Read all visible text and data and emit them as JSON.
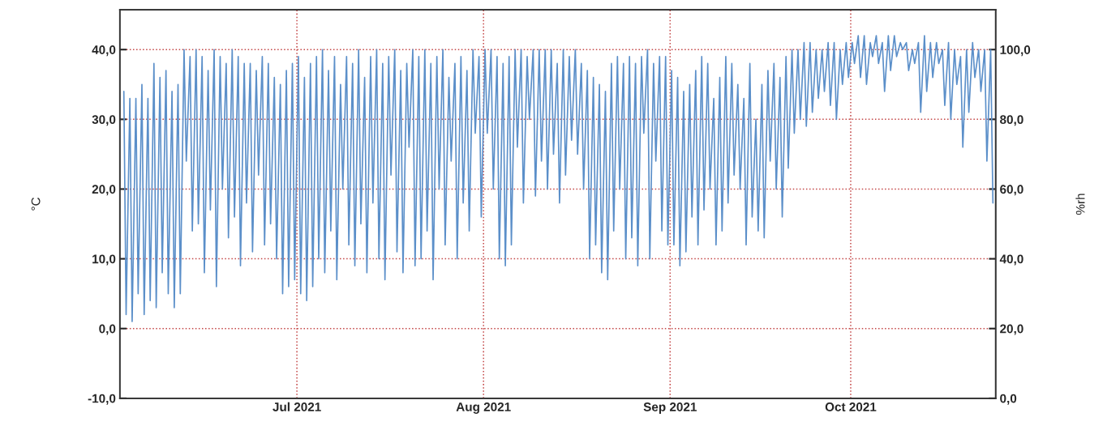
{
  "chart_data": {
    "type": "line",
    "ylabel": "°C",
    "y2label": "%rh",
    "xlim": [
      "2021-06-01T14:00",
      "2021-10-25T02:00"
    ],
    "xticks": [
      {
        "value": "2021-07-01",
        "label": "Jul 2021"
      },
      {
        "value": "2021-08-01",
        "label": "Aug 2021"
      },
      {
        "value": "2021-09-01",
        "label": "Sep 2021"
      },
      {
        "value": "2021-10-01",
        "label": "Oct 2021"
      }
    ],
    "ylim": [
      -10,
      45.7
    ],
    "yticks": [
      {
        "value": -10,
        "label": "-10,0"
      },
      {
        "value": 0,
        "label": "0,0"
      },
      {
        "value": 10,
        "label": "10,0"
      },
      {
        "value": 20,
        "label": "20,0"
      },
      {
        "value": 30,
        "label": "30,0"
      },
      {
        "value": 40,
        "label": "40,0"
      }
    ],
    "y2lim": [
      0,
      111.4
    ],
    "y2ticks": [
      {
        "value": 0,
        "label": "0,0"
      },
      {
        "value": 20,
        "label": "20,0"
      },
      {
        "value": 40,
        "label": "40,0"
      },
      {
        "value": 60,
        "label": "60,0"
      },
      {
        "value": 80,
        "label": "80,0"
      },
      {
        "value": 100,
        "label": "100,0"
      }
    ],
    "grid": true,
    "legend": false,
    "line_style": "solid",
    "marker": "none",
    "series": [
      {
        "axis": "y2",
        "color": "#5b8fc9",
        "x": [
          "2021-06-02T06:00",
          "2021-06-02T15:00",
          "2021-06-03T06:00",
          "2021-06-03T15:00",
          "2021-06-04T06:00",
          "2021-06-04T15:00",
          "2021-06-05T06:00",
          "2021-06-05T15:00",
          "2021-06-06T06:00",
          "2021-06-06T15:00",
          "2021-06-07T06:00",
          "2021-06-07T15:00",
          "2021-06-08T06:00",
          "2021-06-08T15:00",
          "2021-06-09T06:00",
          "2021-06-09T15:00",
          "2021-06-10T06:00",
          "2021-06-10T15:00",
          "2021-06-11T06:00",
          "2021-06-11T15:00",
          "2021-06-12T06:00",
          "2021-06-12T15:00",
          "2021-06-13T06:00",
          "2021-06-13T15:00",
          "2021-06-14T06:00",
          "2021-06-14T15:00",
          "2021-06-15T06:00",
          "2021-06-15T15:00",
          "2021-06-16T06:00",
          "2021-06-16T15:00",
          "2021-06-17T06:00",
          "2021-06-17T15:00",
          "2021-06-18T06:00",
          "2021-06-18T15:00",
          "2021-06-19T06:00",
          "2021-06-19T15:00",
          "2021-06-20T06:00",
          "2021-06-20T15:00",
          "2021-06-21T06:00",
          "2021-06-21T15:00",
          "2021-06-22T06:00",
          "2021-06-22T15:00",
          "2021-06-23T06:00",
          "2021-06-23T15:00",
          "2021-06-24T06:00",
          "2021-06-24T15:00",
          "2021-06-25T06:00",
          "2021-06-25T15:00",
          "2021-06-26T06:00",
          "2021-06-26T15:00",
          "2021-06-27T06:00",
          "2021-06-27T15:00",
          "2021-06-28T06:00",
          "2021-06-28T15:00",
          "2021-06-29T06:00",
          "2021-06-29T15:00",
          "2021-06-30T06:00",
          "2021-06-30T15:00",
          "2021-07-01T06:00",
          "2021-07-01T15:00",
          "2021-07-02T06:00",
          "2021-07-02T15:00",
          "2021-07-03T06:00",
          "2021-07-03T15:00",
          "2021-07-04T06:00",
          "2021-07-04T15:00",
          "2021-07-05T06:00",
          "2021-07-05T15:00",
          "2021-07-06T06:00",
          "2021-07-06T15:00",
          "2021-07-07T06:00",
          "2021-07-07T15:00",
          "2021-07-08T06:00",
          "2021-07-08T15:00",
          "2021-07-09T06:00",
          "2021-07-09T15:00",
          "2021-07-10T06:00",
          "2021-07-10T15:00",
          "2021-07-11T06:00",
          "2021-07-11T15:00",
          "2021-07-12T06:00",
          "2021-07-12T15:00",
          "2021-07-13T06:00",
          "2021-07-13T15:00",
          "2021-07-14T06:00",
          "2021-07-14T15:00",
          "2021-07-15T06:00",
          "2021-07-15T15:00",
          "2021-07-16T06:00",
          "2021-07-16T15:00",
          "2021-07-17T06:00",
          "2021-07-17T15:00",
          "2021-07-18T06:00",
          "2021-07-18T15:00",
          "2021-07-19T06:00",
          "2021-07-19T15:00",
          "2021-07-20T06:00",
          "2021-07-20T15:00",
          "2021-07-21T06:00",
          "2021-07-21T15:00",
          "2021-07-22T06:00",
          "2021-07-22T15:00",
          "2021-07-23T06:00",
          "2021-07-23T15:00",
          "2021-07-24T06:00",
          "2021-07-24T15:00",
          "2021-07-25T06:00",
          "2021-07-25T15:00",
          "2021-07-26T06:00",
          "2021-07-26T15:00",
          "2021-07-27T06:00",
          "2021-07-27T15:00",
          "2021-07-28T06:00",
          "2021-07-28T15:00",
          "2021-07-29T06:00",
          "2021-07-29T15:00",
          "2021-07-30T06:00",
          "2021-07-30T15:00",
          "2021-07-31T06:00",
          "2021-07-31T15:00",
          "2021-08-01T06:00",
          "2021-08-01T15:00",
          "2021-08-02T06:00",
          "2021-08-02T15:00",
          "2021-08-03T06:00",
          "2021-08-03T15:00",
          "2021-08-04T06:00",
          "2021-08-04T15:00",
          "2021-08-05T06:00",
          "2021-08-05T15:00",
          "2021-08-06T06:00",
          "2021-08-06T15:00",
          "2021-08-07T06:00",
          "2021-08-07T15:00",
          "2021-08-08T06:00",
          "2021-08-08T15:00",
          "2021-08-09T06:00",
          "2021-08-09T15:00",
          "2021-08-10T06:00",
          "2021-08-10T15:00",
          "2021-08-11T06:00",
          "2021-08-11T15:00",
          "2021-08-12T06:00",
          "2021-08-12T15:00",
          "2021-08-13T06:00",
          "2021-08-13T15:00",
          "2021-08-14T06:00",
          "2021-08-14T15:00",
          "2021-08-15T06:00",
          "2021-08-15T15:00",
          "2021-08-16T06:00",
          "2021-08-16T15:00",
          "2021-08-17T06:00",
          "2021-08-17T15:00",
          "2021-08-18T06:00",
          "2021-08-18T15:00",
          "2021-08-19T06:00",
          "2021-08-19T15:00",
          "2021-08-20T06:00",
          "2021-08-20T15:00",
          "2021-08-21T06:00",
          "2021-08-21T15:00",
          "2021-08-22T06:00",
          "2021-08-22T15:00",
          "2021-08-23T06:00",
          "2021-08-23T15:00",
          "2021-08-24T06:00",
          "2021-08-24T15:00",
          "2021-08-25T06:00",
          "2021-08-25T15:00",
          "2021-08-26T06:00",
          "2021-08-26T15:00",
          "2021-08-27T06:00",
          "2021-08-27T15:00",
          "2021-08-28T06:00",
          "2021-08-28T15:00",
          "2021-08-29T06:00",
          "2021-08-29T15:00",
          "2021-08-30T06:00",
          "2021-08-30T15:00",
          "2021-08-31T06:00",
          "2021-08-31T15:00",
          "2021-09-01T06:00",
          "2021-09-01T15:00",
          "2021-09-02T06:00",
          "2021-09-02T15:00",
          "2021-09-03T06:00",
          "2021-09-03T15:00",
          "2021-09-04T06:00",
          "2021-09-04T15:00",
          "2021-09-05T06:00",
          "2021-09-05T15:00",
          "2021-09-06T06:00",
          "2021-09-06T15:00",
          "2021-09-07T06:00",
          "2021-09-07T15:00",
          "2021-09-08T06:00",
          "2021-09-08T15:00",
          "2021-09-09T06:00",
          "2021-09-09T15:00",
          "2021-09-10T06:00",
          "2021-09-10T15:00",
          "2021-09-11T06:00",
          "2021-09-11T15:00",
          "2021-09-12T06:00",
          "2021-09-12T15:00",
          "2021-09-13T06:00",
          "2021-09-13T15:00",
          "2021-09-14T06:00",
          "2021-09-14T15:00",
          "2021-09-15T06:00",
          "2021-09-15T15:00",
          "2021-09-16T06:00",
          "2021-09-16T15:00",
          "2021-09-17T06:00",
          "2021-09-17T15:00",
          "2021-09-18T06:00",
          "2021-09-18T15:00",
          "2021-09-19T06:00",
          "2021-09-19T15:00",
          "2021-09-20T06:00",
          "2021-09-20T15:00",
          "2021-09-21T06:00",
          "2021-09-21T15:00",
          "2021-09-22T06:00",
          "2021-09-22T15:00",
          "2021-09-23T06:00",
          "2021-09-23T15:00",
          "2021-09-24T06:00",
          "2021-09-24T15:00",
          "2021-09-25T06:00",
          "2021-09-25T15:00",
          "2021-09-26T06:00",
          "2021-09-26T15:00",
          "2021-09-27T06:00",
          "2021-09-27T15:00",
          "2021-09-28T06:00",
          "2021-09-28T15:00",
          "2021-09-29T06:00",
          "2021-09-29T15:00",
          "2021-09-30T06:00",
          "2021-09-30T15:00",
          "2021-10-01T06:00",
          "2021-10-01T15:00",
          "2021-10-02T06:00",
          "2021-10-02T15:00",
          "2021-10-03T06:00",
          "2021-10-03T15:00",
          "2021-10-04T06:00",
          "2021-10-04T15:00",
          "2021-10-05T06:00",
          "2021-10-05T15:00",
          "2021-10-06T06:00",
          "2021-10-06T15:00",
          "2021-10-07T06:00",
          "2021-10-07T15:00",
          "2021-10-08T06:00",
          "2021-10-08T15:00",
          "2021-10-09T06:00",
          "2021-10-09T15:00",
          "2021-10-10T06:00",
          "2021-10-10T15:00",
          "2021-10-11T06:00",
          "2021-10-11T15:00",
          "2021-10-12T06:00",
          "2021-10-12T15:00",
          "2021-10-13T06:00",
          "2021-10-13T15:00",
          "2021-10-14T06:00",
          "2021-10-14T15:00",
          "2021-10-15T06:00",
          "2021-10-15T15:00",
          "2021-10-16T06:00",
          "2021-10-16T15:00",
          "2021-10-17T06:00",
          "2021-10-17T15:00",
          "2021-10-18T06:00",
          "2021-10-18T15:00",
          "2021-10-19T06:00",
          "2021-10-19T15:00",
          "2021-10-20T06:00",
          "2021-10-20T15:00",
          "2021-10-21T06:00",
          "2021-10-21T15:00",
          "2021-10-22T06:00",
          "2021-10-22T15:00",
          "2021-10-23T06:00",
          "2021-10-23T15:00",
          "2021-10-24T06:00",
          "2021-10-24T15:00"
        ],
        "values": [
          88,
          24,
          86,
          22,
          86,
          30,
          90,
          24,
          86,
          28,
          96,
          26,
          92,
          36,
          94,
          30,
          88,
          26,
          90,
          30,
          100,
          68,
          98,
          48,
          100,
          50,
          98,
          36,
          94,
          54,
          100,
          32,
          98,
          60,
          96,
          46,
          100,
          52,
          98,
          38,
          96,
          56,
          96,
          42,
          94,
          64,
          98,
          44,
          96,
          50,
          92,
          40,
          90,
          30,
          94,
          32,
          96,
          34,
          98,
          30,
          92,
          28,
          96,
          32,
          98,
          40,
          100,
          36,
          94,
          48,
          98,
          34,
          90,
          60,
          98,
          44,
          96,
          38,
          100,
          50,
          92,
          36,
          98,
          56,
          100,
          40,
          96,
          34,
          98,
          64,
          100,
          42,
          94,
          36,
          96,
          72,
          100,
          38,
          98,
          40,
          100,
          48,
          96,
          34,
          98,
          60,
          100,
          44,
          92,
          68,
          96,
          40,
          98,
          56,
          94,
          48,
          100,
          76,
          98,
          52,
          100,
          76,
          100,
          60,
          98,
          40,
          96,
          38,
          98,
          44,
          100,
          72,
          100,
          56,
          98,
          80,
          100,
          58,
          100,
          68,
          100,
          60,
          100,
          70,
          96,
          56,
          100,
          64,
          98,
          74,
          100,
          70,
          96,
          60,
          94,
          40,
          92,
          44,
          90,
          36,
          88,
          34,
          96,
          48,
          98,
          60,
          96,
          40,
          98,
          46,
          96,
          38,
          98,
          76,
          100,
          40,
          96,
          68,
          98,
          48,
          98,
          44,
          94,
          44,
          92,
          38,
          88,
          42,
          90,
          52,
          94,
          44,
          98,
          54,
          96,
          60,
          86,
          44,
          92,
          48,
          98,
          56,
          96,
          64,
          90,
          60,
          86,
          44,
          96,
          52,
          80,
          48,
          90,
          46,
          94,
          68,
          96,
          60,
          92,
          52,
          98,
          66,
          100,
          76,
          100,
          80,
          102,
          78,
          102,
          82,
          100,
          86,
          100,
          88,
          102,
          84,
          102,
          80,
          100,
          90,
          102,
          92,
          102,
          96,
          104,
          92,
          104,
          90,
          102,
          98,
          104,
          96,
          102,
          88,
          104,
          94,
          104,
          98,
          102,
          100,
          102,
          94,
          100,
          96,
          102,
          82,
          104,
          88,
          102,
          92,
          102,
          96,
          100,
          84,
          102,
          80,
          100,
          90,
          98,
          72,
          100,
          82,
          102,
          92,
          100,
          88,
          100,
          68,
          100,
          56
        ]
      }
    ]
  }
}
